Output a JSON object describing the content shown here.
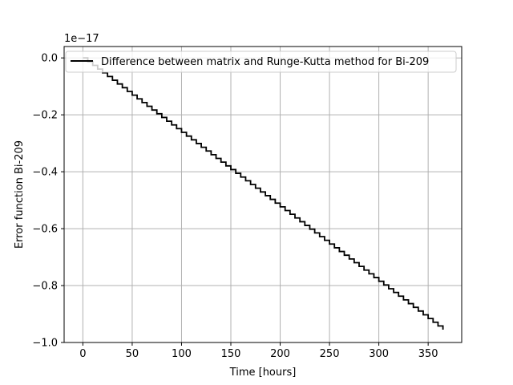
{
  "chart_data": {
    "type": "line",
    "xlabel": "Time [hours]",
    "ylabel": "Error function Bi-209",
    "offset_text": "1e−17",
    "xlim": [
      -19,
      384
    ],
    "ylim": [
      -1.0,
      0.04
    ],
    "x_ticks": [
      0,
      50,
      100,
      150,
      200,
      250,
      300,
      350
    ],
    "x_tick_labels": [
      "0",
      "50",
      "100",
      "150",
      "200",
      "250",
      "300",
      "350"
    ],
    "y_ticks": [
      0.0,
      -0.2,
      -0.4,
      -0.6,
      -0.8,
      -1.0
    ],
    "y_tick_labels": [
      "0.0",
      "−0.2",
      "−0.4",
      "−0.6",
      "−0.8",
      "−1.0"
    ],
    "grid": true,
    "legend_position": "top-left",
    "series": [
      {
        "name": "Difference between matrix and Runge-Kutta method for Bi-209",
        "color": "#000000",
        "style": "step",
        "x_start": 0,
        "x_end": 365,
        "x_step": 5,
        "y_start": 0.0,
        "y_end": -0.955
      }
    ]
  }
}
